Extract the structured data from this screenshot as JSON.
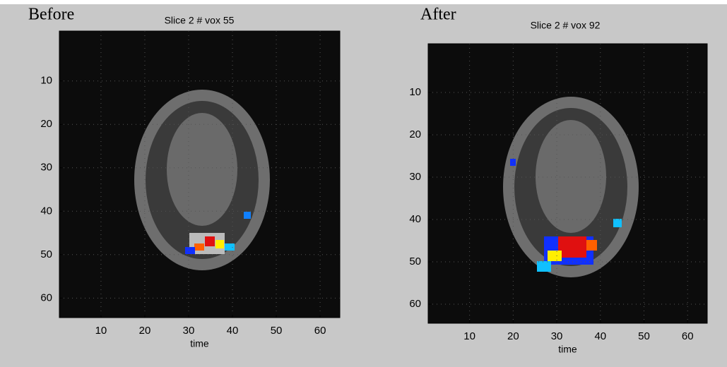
{
  "chart_data": [
    {
      "type": "image",
      "panel_label": "Before",
      "title": "Slice  2 # vox 55",
      "xlabel": "time",
      "xlim": [
        0.5,
        64.5
      ],
      "ylim": [
        -1.5,
        64.5
      ],
      "xticks": [
        10,
        20,
        30,
        40,
        50,
        60
      ],
      "yticks": [
        10,
        20,
        30,
        40,
        50,
        60
      ]
    },
    {
      "type": "image",
      "panel_label": "After",
      "title": "Slice  2 # vox 92",
      "xlabel": "time",
      "xlim": [
        0.5,
        64.5
      ],
      "ylim": [
        -1.5,
        64.5
      ],
      "xticks": [
        10,
        20,
        30,
        40,
        50,
        60
      ],
      "yticks": [
        10,
        20,
        30,
        40,
        50,
        60
      ]
    }
  ]
}
